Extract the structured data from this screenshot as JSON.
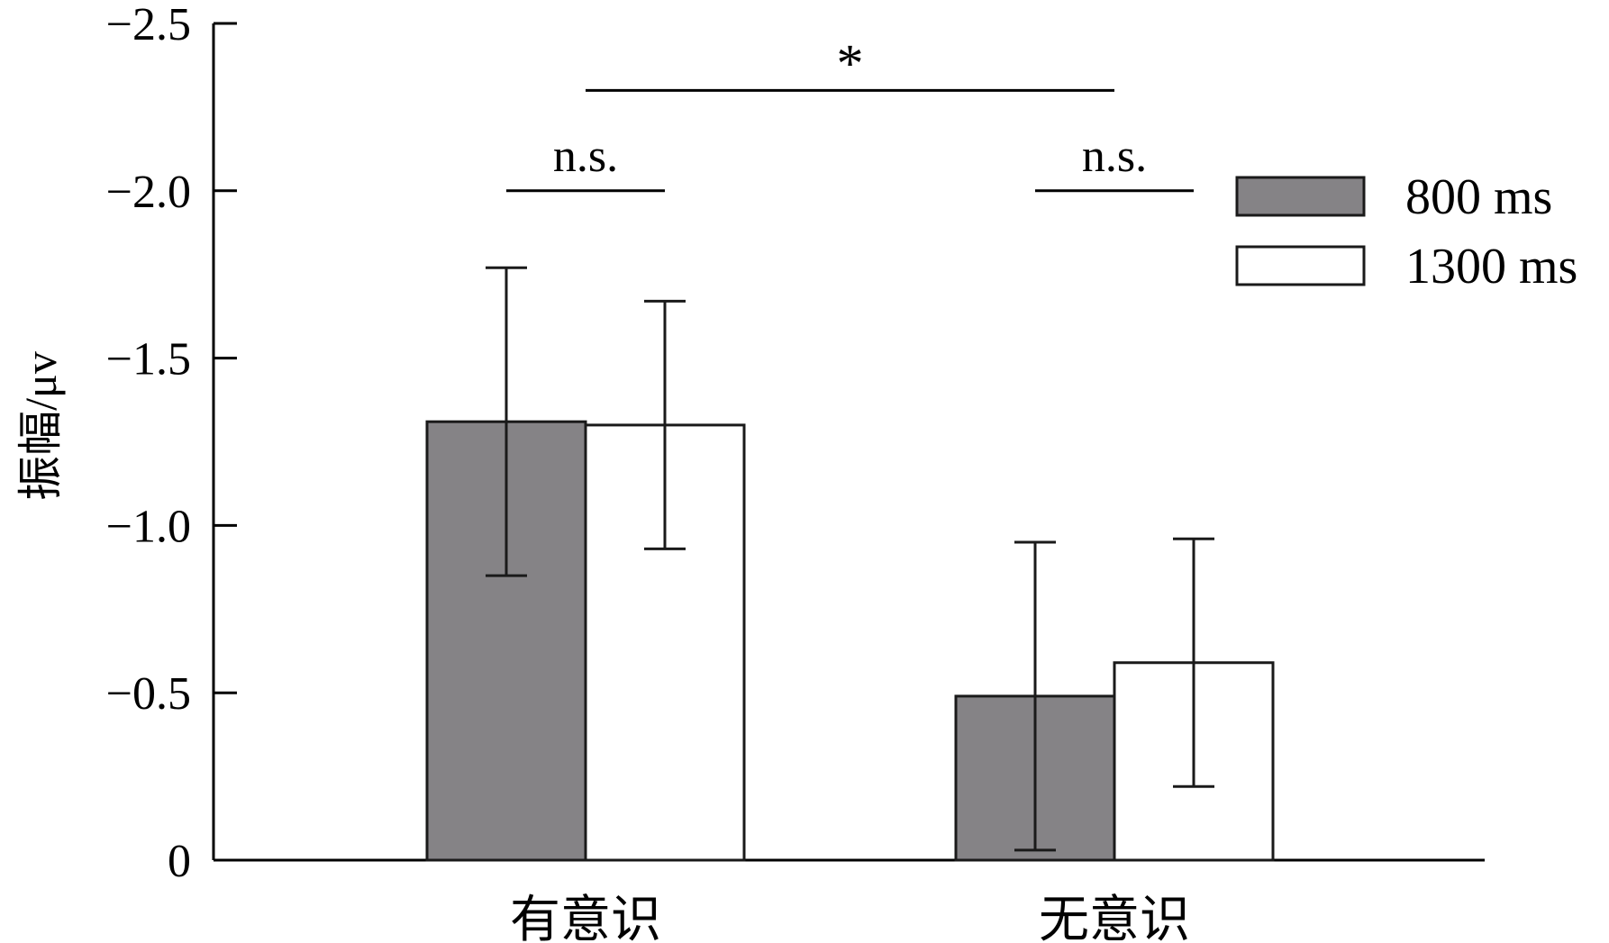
{
  "chart_data": {
    "type": "bar",
    "categories": [
      "有意识",
      "无意识"
    ],
    "series": [
      {
        "name": "800 ms",
        "values": [
          -1.31,
          -0.49
        ],
        "error": [
          0.46,
          0.46
        ],
        "color": "#858386"
      },
      {
        "name": "1300 ms",
        "values": [
          -1.3,
          -0.59
        ],
        "error": [
          0.37,
          0.37
        ],
        "color": "#ffffff"
      }
    ],
    "ylabel": "振幅/μv",
    "ylim": [
      0,
      -2.5
    ],
    "y_inverted": true,
    "yticks": [
      {
        "value": 0,
        "label": "0"
      },
      {
        "value": -0.5,
        "label": "−0.5"
      },
      {
        "value": -1.0,
        "label": "−1.0"
      },
      {
        "value": -1.5,
        "label": "−1.5"
      },
      {
        "value": -2.0,
        "label": "−2.0"
      },
      {
        "value": -2.5,
        "label": "−2.5"
      }
    ],
    "legend_position": "top-right",
    "significance": [
      {
        "label": "n.s.",
        "from_category": 0,
        "level": -2.0
      },
      {
        "label": "n.s.",
        "from_category": 1,
        "level": -2.0
      },
      {
        "label": "*",
        "between_categories": [
          0,
          1
        ],
        "level": -2.3
      }
    ],
    "grid": false,
    "colors": {
      "axis": "#000000",
      "bar_stroke": "#1a1a1a",
      "dark_bar": "#858386"
    }
  }
}
